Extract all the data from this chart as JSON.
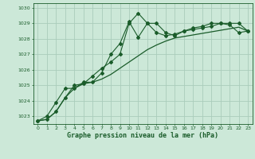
{
  "title": "",
  "xlabel": "Graphe pression niveau de la mer (hPa)",
  "bg_color": "#cce8d8",
  "grid_color": "#aaccbb",
  "line_color": "#1a5c2a",
  "x_ticks": [
    0,
    1,
    2,
    3,
    4,
    5,
    6,
    7,
    8,
    9,
    10,
    11,
    12,
    13,
    14,
    15,
    16,
    17,
    18,
    19,
    20,
    21,
    22,
    23
  ],
  "ylim": [
    1022.5,
    1030.3
  ],
  "yticks": [
    1023,
    1024,
    1025,
    1026,
    1027,
    1028,
    1029,
    1030
  ],
  "series1_x": [
    0,
    1,
    2,
    3,
    4,
    5,
    6,
    7,
    8,
    9,
    10,
    11,
    12,
    13,
    14,
    15,
    16,
    17,
    18,
    19,
    20,
    21,
    22,
    23
  ],
  "series1_y": [
    1022.7,
    1022.8,
    1023.3,
    1024.2,
    1025.0,
    1025.1,
    1025.6,
    1026.1,
    1026.5,
    1027.0,
    1029.0,
    1029.65,
    1029.0,
    1029.0,
    1028.4,
    1028.2,
    1028.5,
    1028.6,
    1028.7,
    1028.8,
    1029.0,
    1029.0,
    1029.0,
    1028.5
  ],
  "series2_x": [
    0,
    1,
    2,
    3,
    4,
    5,
    6,
    7,
    8,
    9,
    10,
    11,
    12,
    13,
    14,
    15,
    16,
    17,
    18,
    19,
    20,
    21,
    22,
    23
  ],
  "series2_y": [
    1022.7,
    1022.8,
    1023.3,
    1024.2,
    1024.8,
    1025.1,
    1025.2,
    1025.4,
    1025.7,
    1026.1,
    1026.5,
    1026.9,
    1027.3,
    1027.6,
    1027.85,
    1028.05,
    1028.15,
    1028.25,
    1028.35,
    1028.45,
    1028.55,
    1028.65,
    1028.75,
    1028.5
  ],
  "series3_x": [
    0,
    1,
    2,
    3,
    4,
    5,
    6,
    7,
    8,
    9,
    10,
    11,
    12,
    13,
    14,
    15,
    16,
    17,
    18,
    19,
    20,
    21,
    22,
    23
  ],
  "series3_y": [
    1022.7,
    1023.0,
    1023.9,
    1024.8,
    1024.8,
    1025.2,
    1025.2,
    1025.8,
    1027.0,
    1027.7,
    1029.1,
    1028.1,
    1029.0,
    1028.4,
    1028.2,
    1028.3,
    1028.5,
    1028.7,
    1028.8,
    1029.0,
    1029.0,
    1028.9,
    1028.4,
    1028.5
  ]
}
